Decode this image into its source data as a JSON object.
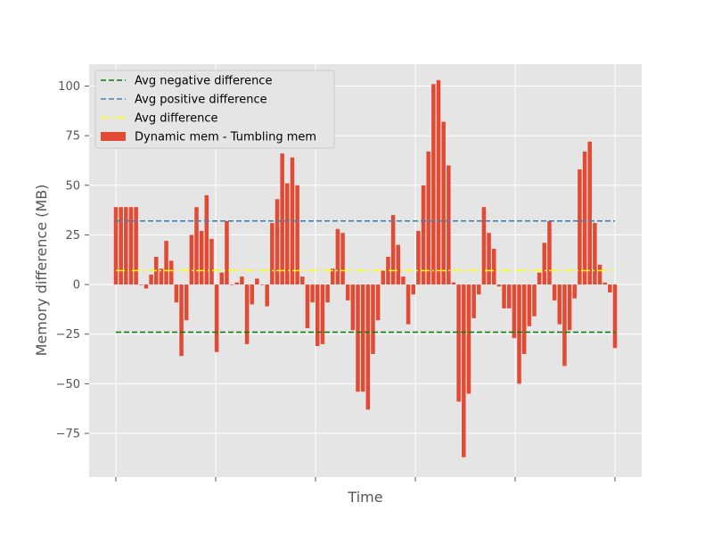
{
  "chart_data": {
    "type": "bar",
    "xlabel": "Time",
    "ylabel": "Memory difference (MB)",
    "ylim": [
      -97,
      111
    ],
    "yticks": [
      -75,
      -50,
      -25,
      0,
      25,
      50,
      75,
      100
    ],
    "x_tick_labels": [
      "",
      "",
      "",
      "",
      "",
      ""
    ],
    "grid": true,
    "legend_position": "top-left",
    "series": [
      {
        "name": "Dynamic mem - Tumbling mem",
        "color": "#E24A33",
        "values": [
          39,
          39,
          39,
          39,
          39,
          0,
          -2,
          5,
          14,
          8,
          22,
          12,
          -9,
          -36,
          -18,
          25,
          39,
          27,
          45,
          23,
          -34,
          6,
          32,
          0,
          1,
          4,
          -30,
          -10,
          3,
          0,
          -11,
          31,
          43,
          66,
          51,
          64,
          50,
          4,
          -22,
          -9,
          -31,
          -30,
          -9,
          8,
          28,
          26,
          -8,
          -23,
          -54,
          -54,
          -63,
          -35,
          -18,
          7,
          14,
          35,
          20,
          4,
          -20,
          -5,
          27,
          50,
          67,
          101,
          103,
          82,
          60,
          1,
          -59,
          -87,
          -55,
          -17,
          -5,
          39,
          26,
          18,
          -1,
          -12,
          -12,
          -27,
          -50,
          -35,
          -21,
          -16,
          6,
          21,
          32,
          -8,
          -20,
          -41,
          -23,
          -7,
          58,
          67,
          72,
          31,
          10,
          1,
          -4,
          -32
        ]
      }
    ],
    "reference_lines": [
      {
        "name": "Avg negative difference",
        "value": -24,
        "color": "#008000",
        "style": "dashed"
      },
      {
        "name": "Avg positive difference",
        "value": 32,
        "color": "#4682B4",
        "style": "dashed"
      },
      {
        "name": "Avg difference",
        "value": 7,
        "color": "#FFFF00",
        "style": "dashdot"
      }
    ]
  }
}
